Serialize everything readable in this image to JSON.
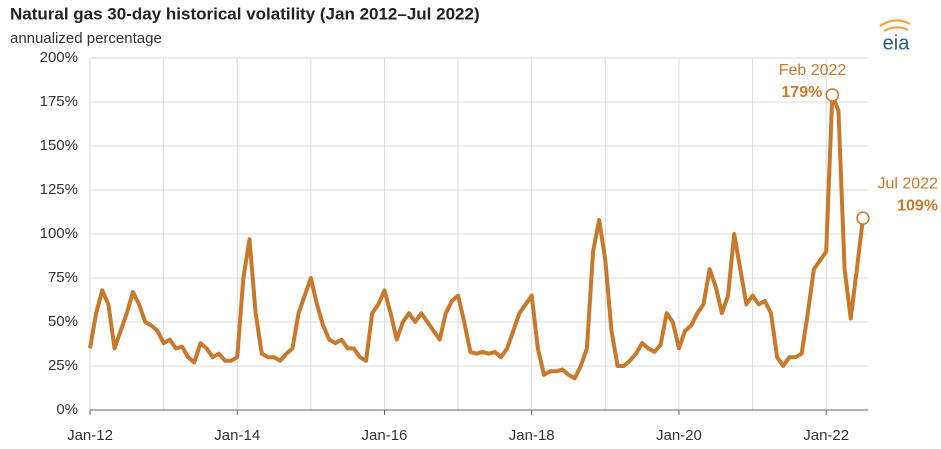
{
  "chart_data": {
    "type": "line",
    "title": "Natural gas 30-day historical volatility (Jan 2012–Jul 2022)",
    "subtitle": "annualized percentage",
    "logo": "eia",
    "x": [
      "2012-01",
      "2012-02",
      "2012-03",
      "2012-04",
      "2012-05",
      "2012-06",
      "2012-07",
      "2012-08",
      "2012-09",
      "2012-10",
      "2012-11",
      "2012-12",
      "2013-01",
      "2013-02",
      "2013-03",
      "2013-04",
      "2013-05",
      "2013-06",
      "2013-07",
      "2013-08",
      "2013-09",
      "2013-10",
      "2013-11",
      "2013-12",
      "2014-01",
      "2014-02",
      "2014-03",
      "2014-04",
      "2014-05",
      "2014-06",
      "2014-07",
      "2014-08",
      "2014-09",
      "2014-10",
      "2014-11",
      "2014-12",
      "2015-01",
      "2015-02",
      "2015-03",
      "2015-04",
      "2015-05",
      "2015-06",
      "2015-07",
      "2015-08",
      "2015-09",
      "2015-10",
      "2015-11",
      "2015-12",
      "2016-01",
      "2016-02",
      "2016-03",
      "2016-04",
      "2016-05",
      "2016-06",
      "2016-07",
      "2016-08",
      "2016-09",
      "2016-10",
      "2016-11",
      "2016-12",
      "2017-01",
      "2017-02",
      "2017-03",
      "2017-04",
      "2017-05",
      "2017-06",
      "2017-07",
      "2017-08",
      "2017-09",
      "2017-10",
      "2017-11",
      "2017-12",
      "2018-01",
      "2018-02",
      "2018-03",
      "2018-04",
      "2018-05",
      "2018-06",
      "2018-07",
      "2018-08",
      "2018-09",
      "2018-10",
      "2018-11",
      "2018-12",
      "2019-01",
      "2019-02",
      "2019-03",
      "2019-04",
      "2019-05",
      "2019-06",
      "2019-07",
      "2019-08",
      "2019-09",
      "2019-10",
      "2019-11",
      "2019-12",
      "2020-01",
      "2020-02",
      "2020-03",
      "2020-04",
      "2020-05",
      "2020-06",
      "2020-07",
      "2020-08",
      "2020-09",
      "2020-10",
      "2020-11",
      "2020-12",
      "2021-01",
      "2021-02",
      "2021-03",
      "2021-04",
      "2021-05",
      "2021-06",
      "2021-07",
      "2021-08",
      "2021-09",
      "2021-10",
      "2021-11",
      "2021-12",
      "2022-01",
      "2022-02",
      "2022-03",
      "2022-04",
      "2022-05",
      "2022-06",
      "2022-07"
    ],
    "series": [
      {
        "name": "Natural gas 30-day historical volatility",
        "color": "#c8792b",
        "values": [
          35,
          55,
          68,
          60,
          35,
          45,
          55,
          67,
          60,
          50,
          48,
          45,
          38,
          40,
          35,
          36,
          30,
          27,
          38,
          35,
          30,
          32,
          28,
          28,
          30,
          75,
          97,
          55,
          32,
          30,
          30,
          28,
          32,
          35,
          55,
          65,
          75,
          60,
          48,
          40,
          38,
          40,
          35,
          35,
          30,
          28,
          55,
          60,
          68,
          55,
          40,
          50,
          55,
          50,
          55,
          50,
          45,
          40,
          55,
          62,
          65,
          50,
          33,
          32,
          33,
          32,
          33,
          30,
          35,
          45,
          55,
          60,
          65,
          35,
          20,
          22,
          22,
          23,
          20,
          18,
          25,
          35,
          90,
          108,
          85,
          45,
          25,
          25,
          28,
          32,
          38,
          35,
          33,
          37,
          55,
          50,
          35,
          45,
          48,
          55,
          60,
          80,
          70,
          55,
          65,
          100,
          80,
          60,
          65,
          60,
          62,
          55,
          30,
          25,
          30,
          30,
          32,
          55,
          80,
          85,
          90,
          179,
          170,
          80,
          52,
          80,
          109
        ]
      }
    ],
    "annotations": [
      {
        "x": "2022-02",
        "value": 179,
        "date_label": "Feb 2022",
        "value_label": "179%"
      },
      {
        "x": "2022-07",
        "value": 109,
        "date_label": "Jul 2022",
        "value_label": "109%"
      }
    ],
    "xlim": [
      "2012-01",
      "2022-07"
    ],
    "xticks": [
      {
        "value": "2012-01",
        "label": "Jan-12"
      },
      {
        "value": "2014-01",
        "label": "Jan-14"
      },
      {
        "value": "2016-01",
        "label": "Jan-16"
      },
      {
        "value": "2018-01",
        "label": "Jan-18"
      },
      {
        "value": "2020-01",
        "label": "Jan-20"
      },
      {
        "value": "2022-01",
        "label": "Jan-22"
      }
    ],
    "x_minor_ticks": [
      "2013-01",
      "2015-01",
      "2017-01",
      "2019-01",
      "2021-01"
    ],
    "ylim": [
      0,
      200
    ],
    "yticks": [
      {
        "value": 0,
        "label": "0%"
      },
      {
        "value": 25,
        "label": "25%"
      },
      {
        "value": 50,
        "label": "50%"
      },
      {
        "value": 75,
        "label": "75%"
      },
      {
        "value": 100,
        "label": "100%"
      },
      {
        "value": 125,
        "label": "125%"
      },
      {
        "value": 150,
        "label": "150%"
      },
      {
        "value": 175,
        "label": "175%"
      },
      {
        "value": 200,
        "label": "200%"
      }
    ],
    "grid": true
  }
}
